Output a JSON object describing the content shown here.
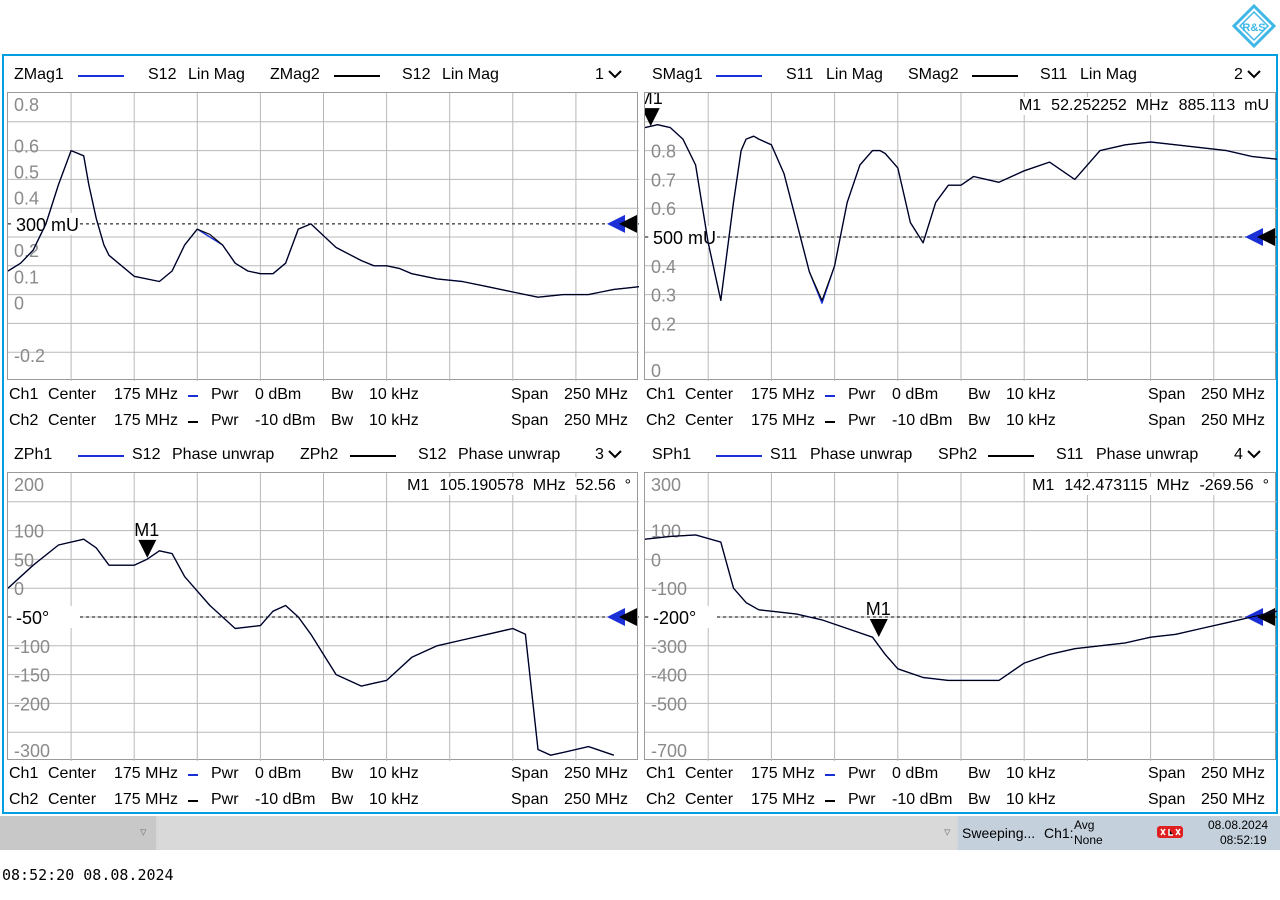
{
  "diagrams": [
    {
      "num": "1",
      "trace1": {
        "name": "ZMag1",
        "param": "S12",
        "format": "Lin Mag",
        "color": "#1a2fd6"
      },
      "trace2": {
        "name": "ZMag2",
        "param": "S12",
        "format": "Lin Mag",
        "color": "#000000"
      },
      "marker_readout": {
        "label": "",
        "freq": "",
        "value": ""
      },
      "ref_label": "300 mU",
      "yticks": [
        {
          "label": "0.8",
          "v": 0.8
        },
        {
          "label": "0.6",
          "v": 0.6
        },
        {
          "label": "0.5",
          "v": 0.5
        },
        {
          "label": "0.4",
          "v": 0.4
        },
        {
          "label": "0.2",
          "v": 0.2
        },
        {
          "label": "0.1",
          "v": 0.1
        },
        {
          "label": "0",
          "v": 0.0
        },
        {
          "label": "-0.2",
          "v": -0.2
        }
      ],
      "channels": [
        {
          "ch": "Ch1",
          "center_label": "Center",
          "center": "175 MHz",
          "pwr_label": "Pwr",
          "pwr": "0 dBm",
          "bw_label": "Bw",
          "bw": "10 kHz",
          "span_label": "Span",
          "span": "250 MHz",
          "color": "#1a2fd6"
        },
        {
          "ch": "Ch2",
          "center_label": "Center",
          "center": "175 MHz",
          "pwr_label": "Pwr",
          "pwr": "-10 dBm",
          "bw_label": "Bw",
          "bw": "10 kHz",
          "span_label": "Span",
          "span": "250 MHz",
          "color": "#000000"
        }
      ]
    },
    {
      "num": "2",
      "trace1": {
        "name": "SMag1",
        "param": "S11",
        "format": "Lin Mag",
        "color": "#1a2fd6"
      },
      "trace2": {
        "name": "SMag2",
        "param": "S11",
        "format": "Lin Mag",
        "color": "#000000"
      },
      "marker_readout": {
        "label": "M1",
        "freq": "52.252252  MHz",
        "value": "885.113  mU"
      },
      "ref_label": "500 mU",
      "yticks": [
        {
          "label": "0.8",
          "v": 0.8
        },
        {
          "label": "0.7",
          "v": 0.7
        },
        {
          "label": "0.6",
          "v": 0.6
        },
        {
          "label": "0.4",
          "v": 0.4
        },
        {
          "label": "0.3",
          "v": 0.3
        },
        {
          "label": "0.2",
          "v": 0.2
        },
        {
          "label": "0",
          "v": 0.0
        }
      ],
      "channels": [
        {
          "ch": "Ch1",
          "center_label": "Center",
          "center": "175 MHz",
          "pwr_label": "Pwr",
          "pwr": "0 dBm",
          "bw_label": "Bw",
          "bw": "10 kHz",
          "span_label": "Span",
          "span": "250 MHz",
          "color": "#1a2fd6"
        },
        {
          "ch": "Ch2",
          "center_label": "Center",
          "center": "175 MHz",
          "pwr_label": "Pwr",
          "pwr": "-10 dBm",
          "bw_label": "Bw",
          "bw": "10 kHz",
          "span_label": "Span",
          "span": "250 MHz",
          "color": "#000000"
        }
      ]
    },
    {
      "num": "3",
      "trace1": {
        "name": "ZPh1",
        "param": "S12",
        "format": "Phase unwrap",
        "color": "#1a2fd6"
      },
      "trace2": {
        "name": "ZPh2",
        "param": "S12",
        "format": "Phase unwrap",
        "color": "#000000"
      },
      "marker_readout": {
        "label": "M1",
        "freq": "105.190578  MHz",
        "value": "52.56  °"
      },
      "ref_label": "-50°",
      "yticks": [
        {
          "label": "200",
          "v": 200
        },
        {
          "label": "100",
          "v": 100
        },
        {
          "label": "50",
          "v": 50
        },
        {
          "label": "0",
          "v": 0
        },
        {
          "label": "-100",
          "v": -100
        },
        {
          "label": "-150",
          "v": -150
        },
        {
          "label": "-200",
          "v": -200
        },
        {
          "label": "-300",
          "v": -300
        }
      ],
      "channels": [
        {
          "ch": "Ch1",
          "center_label": "Center",
          "center": "175 MHz",
          "pwr_label": "Pwr",
          "pwr": "0 dBm",
          "bw_label": "Bw",
          "bw": "10 kHz",
          "span_label": "Span",
          "span": "250 MHz",
          "color": "#1a2fd6"
        },
        {
          "ch": "Ch2",
          "center_label": "Center",
          "center": "175 MHz",
          "pwr_label": "Pwr",
          "pwr": "-10 dBm",
          "bw_label": "Bw",
          "bw": "10 kHz",
          "span_label": "Span",
          "span": "250 MHz",
          "color": "#000000"
        }
      ]
    },
    {
      "num": "4",
      "trace1": {
        "name": "SPh1",
        "param": "S11",
        "format": "Phase unwrap",
        "color": "#1a2fd6"
      },
      "trace2": {
        "name": "SPh2",
        "param": "S11",
        "format": "Phase unwrap",
        "color": "#000000"
      },
      "marker_readout": {
        "label": "M1",
        "freq": "142.473115  MHz",
        "value": "-269.56  °"
      },
      "ref_label": "-200°",
      "yticks": [
        {
          "label": "300",
          "v": 300
        },
        {
          "label": "100",
          "v": 100
        },
        {
          "label": "0",
          "v": 0
        },
        {
          "label": "-100",
          "v": -100
        },
        {
          "label": "-300",
          "v": -300
        },
        {
          "label": "-400",
          "v": -400
        },
        {
          "label": "-500",
          "v": -500
        },
        {
          "label": "-700",
          "v": -700
        }
      ],
      "channels": [
        {
          "ch": "Ch1",
          "center_label": "Center",
          "center": "175 MHz",
          "pwr_label": "Pwr",
          "pwr": "0 dBm",
          "bw_label": "Bw",
          "bw": "10 kHz",
          "span_label": "Span",
          "span": "250 MHz",
          "color": "#1a2fd6"
        },
        {
          "ch": "Ch2",
          "center_label": "Center",
          "center": "175 MHz",
          "pwr_label": "Pwr",
          "pwr": "-10 dBm",
          "bw_label": "Bw",
          "bw": "10 kHz",
          "span_label": "Span",
          "span": "250 MHz",
          "color": "#000000"
        }
      ]
    }
  ],
  "chart_data": [
    {
      "type": "line",
      "ylim": [
        -0.3,
        0.8
      ],
      "xlim": [
        50,
        300
      ],
      "ref_value": 0.3,
      "grid": true,
      "marker": null,
      "series": [
        {
          "name": "ZMag1",
          "color": "#1a2fd6",
          "x": [
            50,
            55,
            60,
            65,
            70,
            75,
            80,
            82,
            85,
            88,
            90,
            95,
            100,
            110,
            115,
            120,
            125,
            130,
            135,
            140,
            145,
            150,
            155,
            160,
            165,
            170,
            180,
            190,
            195,
            200,
            205,
            210,
            220,
            230,
            240,
            250,
            260,
            270,
            280,
            285,
            290,
            300
          ],
          "y": [
            0.12,
            0.15,
            0.2,
            0.3,
            0.45,
            0.58,
            0.56,
            0.45,
            0.32,
            0.22,
            0.18,
            0.14,
            0.1,
            0.08,
            0.12,
            0.22,
            0.28,
            0.25,
            0.22,
            0.15,
            0.12,
            0.11,
            0.11,
            0.15,
            0.28,
            0.3,
            0.21,
            0.16,
            0.14,
            0.14,
            0.13,
            0.11,
            0.09,
            0.08,
            0.06,
            0.04,
            0.02,
            0.03,
            0.03,
            0.04,
            0.05,
            0.06
          ]
        },
        {
          "name": "ZMag2",
          "color": "#000000",
          "x": [
            50,
            55,
            60,
            65,
            70,
            75,
            80,
            82,
            85,
            88,
            90,
            95,
            100,
            110,
            115,
            120,
            125,
            130,
            135,
            140,
            145,
            150,
            155,
            160,
            165,
            170,
            180,
            190,
            195,
            200,
            205,
            210,
            220,
            230,
            240,
            250,
            260,
            270,
            280,
            285,
            290,
            300
          ],
          "y": [
            0.12,
            0.15,
            0.2,
            0.3,
            0.45,
            0.58,
            0.56,
            0.45,
            0.32,
            0.22,
            0.18,
            0.14,
            0.1,
            0.08,
            0.12,
            0.22,
            0.28,
            0.26,
            0.22,
            0.15,
            0.12,
            0.11,
            0.11,
            0.15,
            0.28,
            0.3,
            0.21,
            0.16,
            0.14,
            0.14,
            0.13,
            0.11,
            0.09,
            0.08,
            0.06,
            0.04,
            0.02,
            0.03,
            0.03,
            0.04,
            0.05,
            0.06
          ]
        }
      ]
    },
    {
      "type": "line",
      "ylim": [
        0,
        1.0
      ],
      "xlim": [
        50,
        300
      ],
      "ref_value": 0.5,
      "grid": true,
      "marker": {
        "label": "M1",
        "x": 52.252252,
        "y": 0.885113
      },
      "series": [
        {
          "name": "SMag1",
          "color": "#1a2fd6",
          "x": [
            50,
            55,
            60,
            65,
            70,
            75,
            80,
            85,
            88,
            90,
            93,
            95,
            100,
            105,
            110,
            115,
            120,
            125,
            130,
            135,
            140,
            143,
            145,
            150,
            155,
            160,
            165,
            170,
            175,
            180,
            185,
            190,
            195,
            200,
            210,
            220,
            230,
            240,
            250,
            260,
            270,
            280,
            290,
            300
          ],
          "y": [
            0.88,
            0.89,
            0.88,
            0.84,
            0.75,
            0.48,
            0.28,
            0.62,
            0.8,
            0.84,
            0.85,
            0.84,
            0.82,
            0.72,
            0.55,
            0.38,
            0.27,
            0.4,
            0.62,
            0.75,
            0.8,
            0.8,
            0.79,
            0.74,
            0.55,
            0.48,
            0.62,
            0.68,
            0.68,
            0.71,
            0.7,
            0.69,
            0.71,
            0.73,
            0.76,
            0.7,
            0.8,
            0.82,
            0.83,
            0.82,
            0.81,
            0.8,
            0.78,
            0.77
          ]
        },
        {
          "name": "SMag2",
          "color": "#000000",
          "x": [
            50,
            55,
            60,
            65,
            70,
            75,
            80,
            85,
            88,
            90,
            93,
            95,
            100,
            105,
            110,
            115,
            120,
            125,
            130,
            135,
            140,
            143,
            145,
            150,
            155,
            160,
            165,
            170,
            175,
            180,
            185,
            190,
            195,
            200,
            210,
            220,
            230,
            240,
            250,
            260,
            270,
            280,
            290,
            300
          ],
          "y": [
            0.88,
            0.89,
            0.88,
            0.84,
            0.75,
            0.48,
            0.28,
            0.62,
            0.8,
            0.84,
            0.85,
            0.84,
            0.82,
            0.72,
            0.55,
            0.38,
            0.28,
            0.4,
            0.62,
            0.75,
            0.8,
            0.8,
            0.79,
            0.74,
            0.55,
            0.48,
            0.62,
            0.68,
            0.68,
            0.71,
            0.7,
            0.69,
            0.71,
            0.73,
            0.76,
            0.7,
            0.8,
            0.82,
            0.83,
            0.82,
            0.81,
            0.8,
            0.78,
            0.77
          ]
        }
      ]
    },
    {
      "type": "line",
      "ylim": [
        -300,
        200
      ],
      "xlim": [
        50,
        300
      ],
      "ref_value": -50,
      "grid": true,
      "marker": {
        "label": "M1",
        "x": 105.190578,
        "y": 52.56
      },
      "series": [
        {
          "name": "ZPh1",
          "color": "#1a2fd6",
          "x": [
            50,
            55,
            60,
            70,
            80,
            85,
            90,
            100,
            105,
            110,
            115,
            120,
            130,
            140,
            150,
            155,
            160,
            165,
            170,
            180,
            190,
            195,
            200,
            210,
            220,
            230,
            240,
            250,
            255,
            260,
            265,
            270,
            280,
            290
          ],
          "y": [
            0,
            20,
            40,
            75,
            85,
            70,
            40,
            40,
            50,
            65,
            60,
            20,
            -30,
            -70,
            -65,
            -40,
            -30,
            -50,
            -80,
            -150,
            -170,
            -165,
            -160,
            -120,
            -100,
            -90,
            -80,
            -70,
            -80,
            -280,
            -290,
            -285,
            -275,
            -290
          ]
        },
        {
          "name": "ZPh2",
          "color": "#000000",
          "x": [
            50,
            55,
            60,
            70,
            80,
            85,
            90,
            100,
            105,
            110,
            115,
            120,
            130,
            140,
            150,
            155,
            160,
            165,
            170,
            180,
            190,
            195,
            200,
            210,
            220,
            230,
            240,
            250,
            255,
            260,
            265,
            270,
            280,
            290
          ],
          "y": [
            0,
            20,
            40,
            75,
            85,
            70,
            40,
            40,
            50,
            65,
            60,
            20,
            -30,
            -70,
            -65,
            -40,
            -30,
            -50,
            -80,
            -150,
            -170,
            -165,
            -160,
            -120,
            -100,
            -90,
            -80,
            -70,
            -80,
            -280,
            -290,
            -285,
            -275,
            -290
          ]
        }
      ]
    },
    {
      "type": "line",
      "ylim": [
        -700,
        300
      ],
      "xlim": [
        50,
        300
      ],
      "ref_value": -200,
      "grid": true,
      "marker": {
        "label": "M1",
        "x": 142.473115,
        "y": -269.56
      },
      "series": [
        {
          "name": "SPh1",
          "color": "#1a2fd6",
          "x": [
            50,
            60,
            70,
            80,
            85,
            90,
            95,
            100,
            110,
            120,
            130,
            140,
            145,
            150,
            160,
            170,
            180,
            190,
            200,
            210,
            220,
            230,
            240,
            250,
            260,
            270,
            280,
            290,
            300
          ],
          "y": [
            70,
            80,
            85,
            60,
            -100,
            -150,
            -175,
            -180,
            -190,
            -210,
            -240,
            -270,
            -330,
            -380,
            -410,
            -420,
            -420,
            -420,
            -360,
            -330,
            -310,
            -300,
            -290,
            -270,
            -260,
            -240,
            -220,
            -200,
            -180
          ]
        },
        {
          "name": "SPh2",
          "color": "#000000",
          "x": [
            50,
            60,
            70,
            80,
            85,
            90,
            95,
            100,
            110,
            120,
            130,
            140,
            145,
            150,
            160,
            170,
            180,
            190,
            200,
            210,
            220,
            230,
            240,
            250,
            260,
            270,
            280,
            290,
            300
          ],
          "y": [
            70,
            80,
            85,
            60,
            -100,
            -150,
            -175,
            -180,
            -190,
            -210,
            -240,
            -270,
            -330,
            -380,
            -410,
            -420,
            -420,
            -420,
            -360,
            -330,
            -310,
            -300,
            -290,
            -270,
            -260,
            -240,
            -220,
            -200,
            -180
          ]
        }
      ]
    }
  ],
  "statusbar": {
    "sweeping": "Sweeping...",
    "ch": "Ch1:",
    "avg": "Avg",
    "avg_mode": "None",
    "date": "08.08.2024",
    "time": "08:52:19"
  },
  "bottom_timestamp": "08:52:20  08.08.2024",
  "logo_text": "R&S"
}
